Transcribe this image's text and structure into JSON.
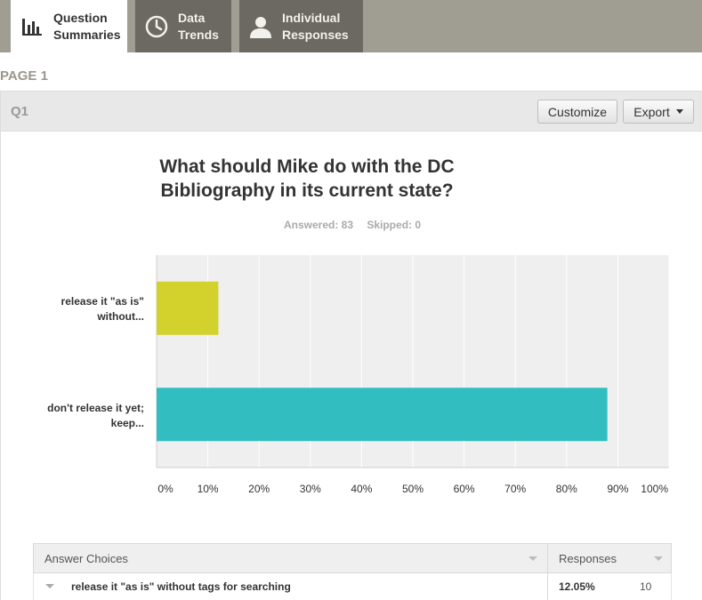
{
  "tabs": [
    {
      "label": "Question\nSummaries",
      "icon": "bar-chart-icon"
    },
    {
      "label": "Data\nTrends",
      "icon": "clock-icon"
    },
    {
      "label": "Individual\nResponses",
      "icon": "person-icon"
    }
  ],
  "page_label": "PAGE 1",
  "question": {
    "number": "Q1",
    "customize_label": "Customize",
    "export_label": "Export",
    "answered": "Answered: 83",
    "skipped": "Skipped: 0"
  },
  "chart_data": {
    "type": "bar",
    "orientation": "horizontal",
    "title": "What should Mike do with the DC Bibliography in its current state?",
    "categories": [
      "release it \"as is\" without...",
      "don't release it yet; keep..."
    ],
    "values": [
      12.05,
      87.95
    ],
    "colors": [
      "#d3d22c",
      "#32bec1"
    ],
    "xlim": [
      0,
      100
    ],
    "ticks": [
      "0%",
      "10%",
      "20%",
      "30%",
      "40%",
      "50%",
      "60%",
      "70%",
      "80%",
      "90%",
      "100%"
    ],
    "grid": true
  },
  "table": {
    "header_choices": "Answer Choices",
    "header_responses": "Responses",
    "rows": [
      {
        "choice": "release it \"as is\" without tags for searching",
        "percent": "12.05%",
        "count": "10"
      }
    ]
  }
}
